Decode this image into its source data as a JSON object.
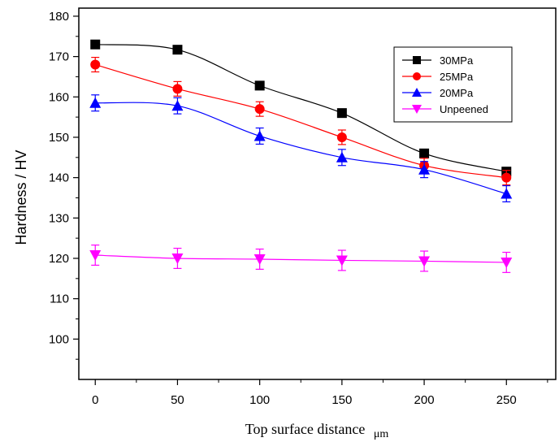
{
  "chart_data": {
    "type": "line",
    "title": "",
    "xlabel": "Top surface distance",
    "xlabel_unit": "μm",
    "ylabel": "Hardness / HV",
    "x": [
      0,
      50,
      100,
      150,
      200,
      250
    ],
    "xlim": [
      -10,
      280
    ],
    "ylim": [
      90,
      182
    ],
    "xticks": [
      0,
      50,
      100,
      150,
      200,
      250
    ],
    "yticks": [
      100,
      110,
      120,
      130,
      140,
      150,
      160,
      170,
      180
    ],
    "legend_position": "top-right",
    "grid": false,
    "series": [
      {
        "name": "30MPa",
        "color": "#000000",
        "marker": "square",
        "values": [
          173,
          171.7,
          162.8,
          156,
          146,
          141.5
        ],
        "errors": [
          0.8,
          0.8,
          0.8,
          0.8,
          0.8,
          0.8
        ]
      },
      {
        "name": "25MPa",
        "color": "#ff0000",
        "marker": "circle",
        "values": [
          168,
          162,
          157,
          150,
          143,
          140
        ],
        "errors": [
          1.8,
          1.8,
          1.8,
          1.8,
          1.8,
          1.8
        ]
      },
      {
        "name": "20MPa",
        "color": "#0000ff",
        "marker": "triangle-up",
        "values": [
          158.5,
          157.8,
          150.3,
          145,
          142,
          136
        ],
        "errors": [
          2.0,
          2.0,
          2.0,
          2.0,
          2.0,
          2.0
        ]
      },
      {
        "name": "Unpeened",
        "color": "#ff00ff",
        "marker": "triangle-down",
        "values": [
          120.8,
          120,
          119.8,
          119.5,
          119.3,
          119
        ],
        "errors": [
          2.5,
          2.5,
          2.5,
          2.5,
          2.5,
          2.5
        ]
      }
    ]
  }
}
